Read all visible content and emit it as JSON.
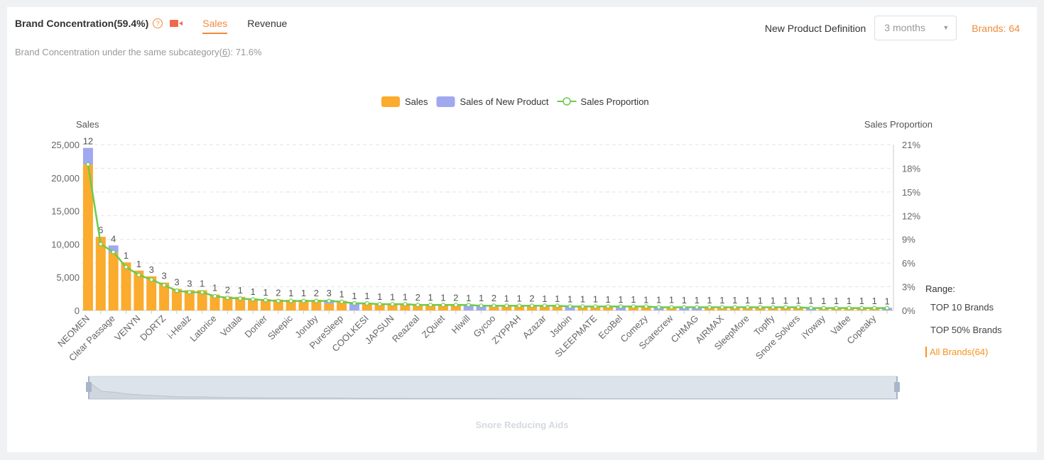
{
  "header": {
    "title": "Brand Concentration(59.4%)",
    "help_icon": "question-circle-icon",
    "video_icon": "video-camera-icon",
    "tabs": [
      {
        "label": "Sales",
        "active": true
      },
      {
        "label": "Revenue",
        "active": false
      }
    ],
    "subtitle_prefix": "Brand Concentration under the same subcategory(",
    "subtitle_link": "6",
    "subtitle_suffix": "):  71.6%",
    "new_product_label": "New Product Definition",
    "new_product_select": "3 months",
    "brands_count": "Brands: 64"
  },
  "range": {
    "label": "Range:",
    "options": [
      {
        "label": "TOP 10 Brands",
        "active": false
      },
      {
        "label": "TOP 50% Brands",
        "active": false
      },
      {
        "label": "All Brands(64)",
        "active": true
      }
    ]
  },
  "category_label": "Snore Reducing Aids",
  "colors": {
    "sales": "#fbab2d",
    "new_product": "#a0a8f0",
    "proportion": "#6ccb4f",
    "accent": "#f08a3c"
  },
  "chart_data": {
    "type": "bar",
    "stacked": true,
    "legend": [
      "Sales",
      "Sales of New Product",
      "Sales Proportion"
    ],
    "legend_position": "top",
    "ylabel": "Sales",
    "ylabel_right": "Sales Proportion",
    "ylim": [
      0,
      25000
    ],
    "yticks": [
      "0",
      "5,000",
      "10,000",
      "15,000",
      "20,000",
      "25,000"
    ],
    "ylim_right": [
      0,
      21
    ],
    "yticks_right": [
      "0%",
      "3%",
      "6%",
      "9%",
      "12%",
      "15%",
      "18%",
      "21%"
    ],
    "grid": true,
    "categories": [
      "NEOMEN",
      "",
      "Clear Passage",
      "",
      "VENYN",
      "",
      "DORTZ",
      "",
      "i-Healz",
      "",
      "Latorice",
      "",
      "Votala",
      "",
      "Donier",
      "",
      "Sleepic",
      "",
      "Joruby",
      "",
      "PureSleep",
      "",
      "COOLKESI",
      "",
      "JAPSUN",
      "",
      "Reazeal",
      "",
      "ZQuiet",
      "",
      "Hiwill",
      "",
      "Gycoo",
      "",
      "ZYPPAH",
      "",
      "Azazar",
      "",
      "Jsdoin",
      "",
      "SLEEPMATE",
      "",
      "EcoBel",
      "",
      "Comezy",
      "",
      "Scarecrew",
      "",
      "CHMAG",
      "",
      "AIRMAX",
      "",
      "SleepMore",
      "",
      "Topffy",
      "",
      "Snore Solvers",
      "",
      "iYoway",
      "",
      "Vafee",
      "",
      "Copeaky",
      ""
    ],
    "series": [
      {
        "name": "Sales",
        "values": [
          22000,
          11100,
          8700,
          7250,
          6000,
          5150,
          4200,
          3250,
          3050,
          3050,
          2400,
          2100,
          2050,
          1800,
          1700,
          1650,
          1600,
          1600,
          1600,
          1000,
          1450,
          0,
          1150,
          1050,
          1000,
          1000,
          950,
          950,
          900,
          900,
          0,
          0,
          550,
          820,
          800,
          780,
          760,
          740,
          0,
          700,
          680,
          660,
          0,
          620,
          600,
          0,
          570,
          0,
          0,
          540,
          530,
          520,
          510,
          500,
          490,
          480,
          470,
          0,
          450,
          440,
          430,
          420,
          410,
          0
        ]
      },
      {
        "name": "Sales of New Product",
        "values": [
          2500,
          0,
          1100,
          0,
          0,
          0,
          0,
          0,
          0,
          0,
          0,
          0,
          0,
          0,
          0,
          0,
          0,
          0,
          0,
          600,
          0,
          1200,
          0,
          0,
          0,
          0,
          0,
          0,
          0,
          0,
          880,
          850,
          300,
          0,
          0,
          0,
          0,
          0,
          720,
          0,
          0,
          0,
          640,
          0,
          0,
          580,
          0,
          560,
          550,
          0,
          0,
          0,
          0,
          0,
          0,
          0,
          0,
          460,
          0,
          0,
          0,
          0,
          0,
          400
        ]
      },
      {
        "name": "Sales Proportion",
        "axis": "right",
        "values": [
          18.5,
          8.4,
          7.4,
          5.5,
          4.5,
          3.9,
          3.2,
          2.5,
          2.3,
          2.3,
          1.8,
          1.6,
          1.5,
          1.4,
          1.3,
          1.2,
          1.2,
          1.2,
          1.2,
          1.2,
          1.1,
          0.9,
          0.9,
          0.8,
          0.8,
          0.8,
          0.7,
          0.7,
          0.7,
          0.7,
          0.7,
          0.6,
          0.6,
          0.6,
          0.6,
          0.6,
          0.6,
          0.6,
          0.5,
          0.5,
          0.5,
          0.5,
          0.5,
          0.5,
          0.5,
          0.4,
          0.4,
          0.4,
          0.4,
          0.4,
          0.4,
          0.4,
          0.4,
          0.4,
          0.4,
          0.4,
          0.4,
          0.3,
          0.3,
          0.3,
          0.3,
          0.3,
          0.3,
          0.3
        ]
      }
    ],
    "data_labels": [
      12,
      6,
      4,
      1,
      1,
      3,
      3,
      3,
      3,
      1,
      1,
      2,
      1,
      1,
      1,
      2,
      1,
      1,
      2,
      3,
      1,
      1,
      1,
      1,
      1,
      1,
      2,
      1,
      1,
      2,
      1,
      1,
      2,
      1,
      1,
      2,
      1,
      1,
      1,
      1,
      1,
      1,
      1,
      1,
      1,
      1,
      1,
      1,
      1,
      1,
      1,
      1,
      1,
      1,
      1,
      1,
      1,
      1,
      1,
      1,
      1,
      1,
      1,
      1
    ]
  }
}
